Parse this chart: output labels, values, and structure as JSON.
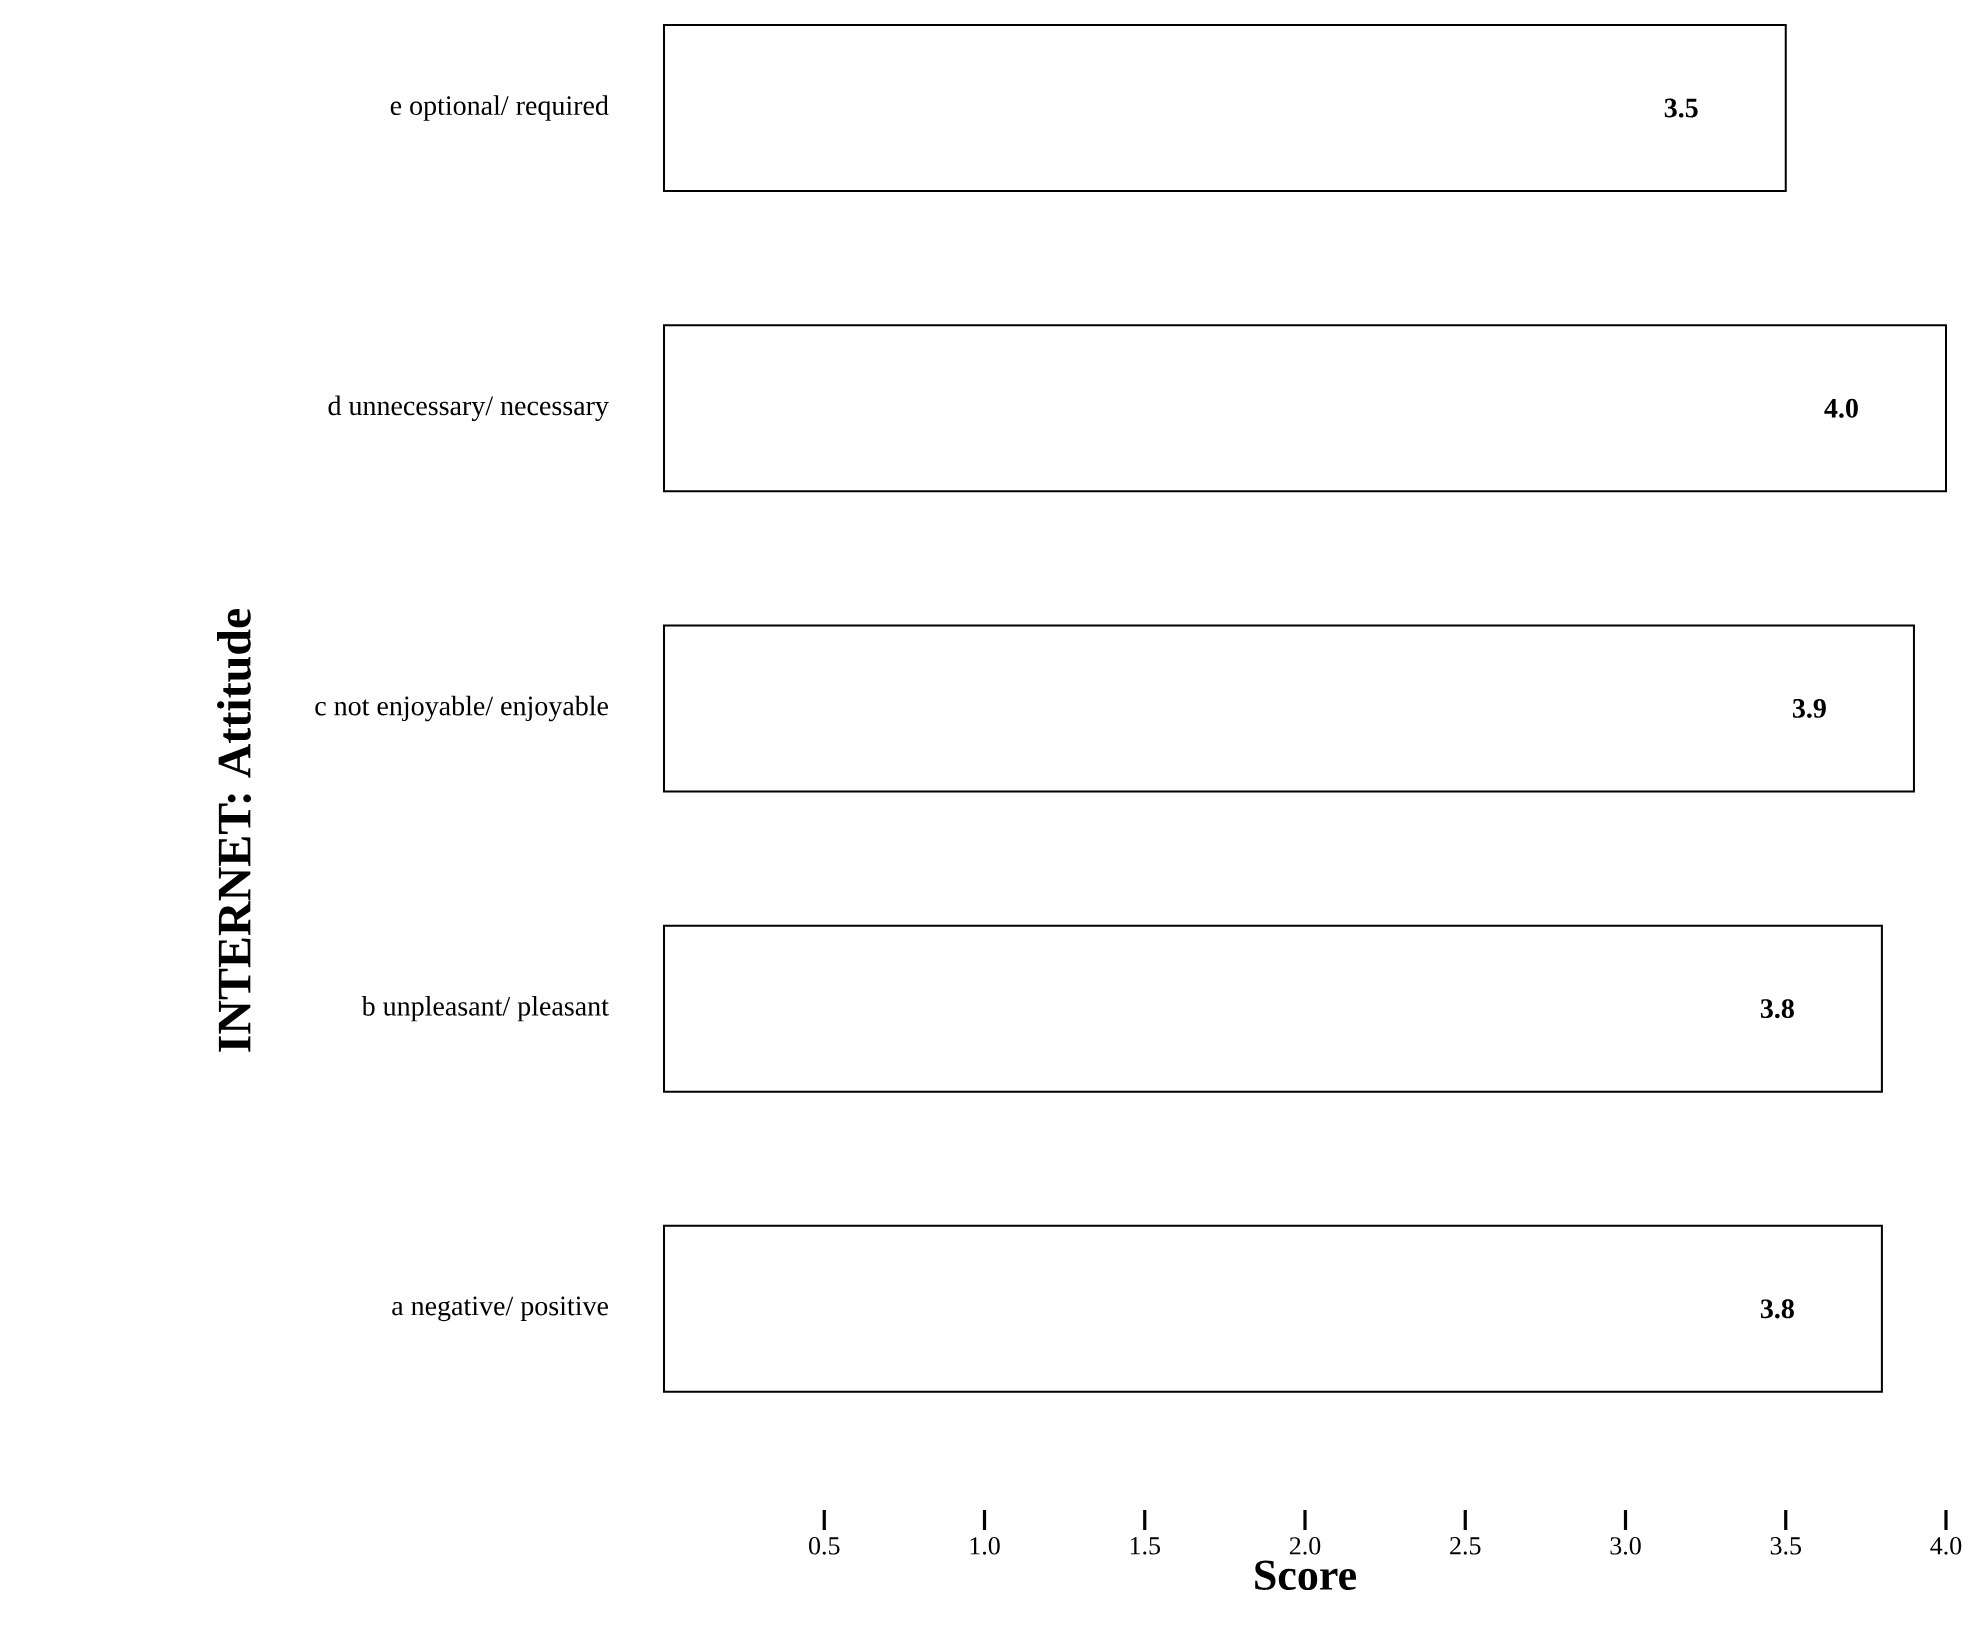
{
  "chart_data": {
    "type": "bar",
    "orientation": "horizontal",
    "xlabel": "Score",
    "ylabel": "INTERNET: Attitude",
    "categories": [
      "e optional/ required",
      "d unnecessary/ necessary",
      "c not enjoyable/ enjoyable",
      "b unpleasant/ pleasant",
      "a negative/ positive"
    ],
    "values": [
      3.5,
      4.0,
      3.9,
      3.8,
      3.8
    ],
    "color": "#ffffff",
    "value_labels": [
      "3.5",
      "4.0",
      "3.9",
      "3.8",
      "3.8"
    ],
    "xlim": [
      0,
      4.0
    ],
    "xticks": [
      0.5,
      {
        "value": 1,
        "label": "1.0"
      },
      1.5,
      {
        "value": 2,
        "label": "2.0"
      },
      2.5,
      {
        "value": 3,
        "label": "3.0"
      },
      3.5,
      {
        "value": 4,
        "label": "4.0"
      }
    ],
    "grid": false
  }
}
